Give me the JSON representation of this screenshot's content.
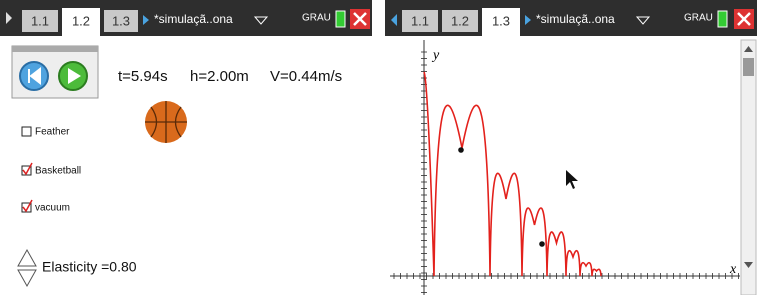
{
  "left": {
    "tabs": [
      "1.1",
      "1.2",
      "1.3"
    ],
    "document": "*simulaçã..ona",
    "mode": "GRAU",
    "readouts": {
      "time": "t=5.94s",
      "height": "h=2.00m",
      "velocity": "V=0.44m/s"
    },
    "checkboxes": [
      "Feather",
      "Basketball",
      "vacuum"
    ],
    "elasticity": "Elasticity =0.80"
  },
  "right": {
    "tabs": [
      "1.1",
      "1.2",
      "1.3"
    ],
    "document": "*simulaçã..ona",
    "mode": "GRAU",
    "y_axis": "y",
    "x_axis": "x"
  }
}
